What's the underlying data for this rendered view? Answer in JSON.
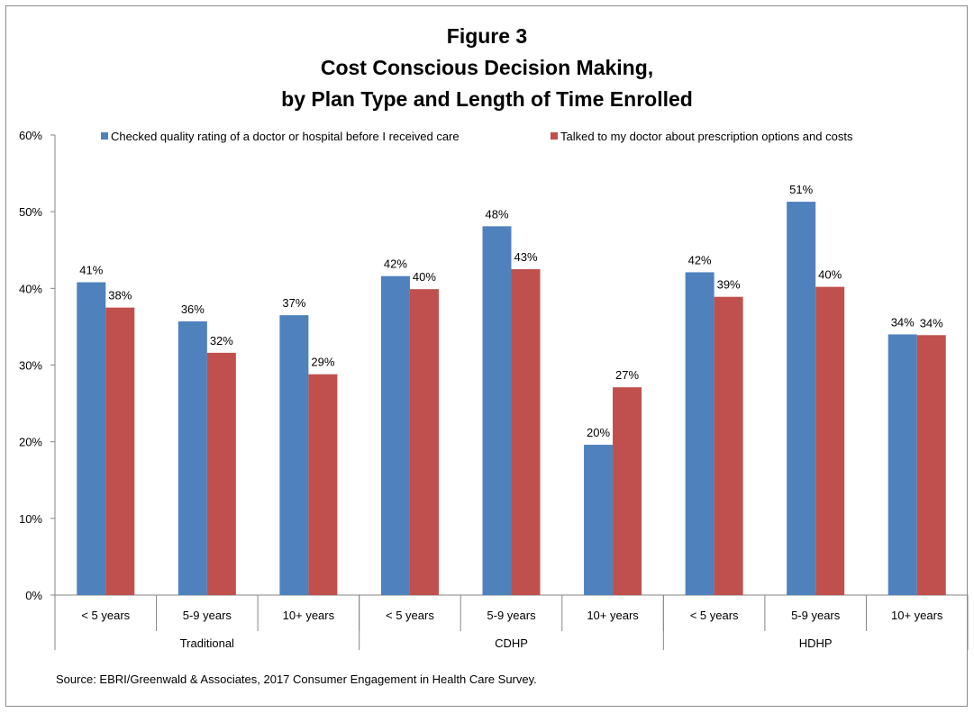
{
  "chart_data": {
    "type": "bar",
    "title": [
      "Figure 3",
      "Cost Conscious Decision Making,",
      "by Plan Type and Length of Time Enrolled"
    ],
    "categories": [
      "< 5 years",
      "5-9 years",
      "10+ years",
      "< 5 years",
      "5-9 years",
      "10+ years",
      "< 5 years",
      "5-9 years",
      "10+ years"
    ],
    "groups": [
      {
        "label": "Traditional",
        "count": 3
      },
      {
        "label": "CDHP",
        "count": 3
      },
      {
        "label": "HDHP",
        "count": 3
      }
    ],
    "series": [
      {
        "name": "Checked  quality rating of a doctor or hospital before I received care",
        "color": "#4f81bd",
        "values": [
          40.8,
          35.7,
          36.5,
          41.6,
          48.1,
          19.6,
          42.1,
          51.3,
          34.0
        ],
        "labels": [
          "41%",
          "36%",
          "37%",
          "42%",
          "48%",
          "20%",
          "42%",
          "51%",
          "34%"
        ]
      },
      {
        "name": "Talked to my doctor about prescription options and costs",
        "color": "#c0504d",
        "values": [
          37.5,
          31.6,
          28.8,
          39.9,
          42.5,
          27.1,
          38.9,
          40.2,
          33.9
        ],
        "labels": [
          "38%",
          "32%",
          "29%",
          "40%",
          "43%",
          "27%",
          "39%",
          "40%",
          "34%"
        ]
      }
    ],
    "ylim": [
      0,
      60
    ],
    "yticks": [
      0,
      10,
      20,
      30,
      40,
      50,
      60
    ],
    "ytick_labels": [
      "0%",
      "10%",
      "20%",
      "30%",
      "40%",
      "50%",
      "60%"
    ],
    "grid": false,
    "legend_position": "top",
    "source": "Source: EBRI/Greenwald & Associates, 2017 Consumer Engagement in Health Care Survey."
  }
}
